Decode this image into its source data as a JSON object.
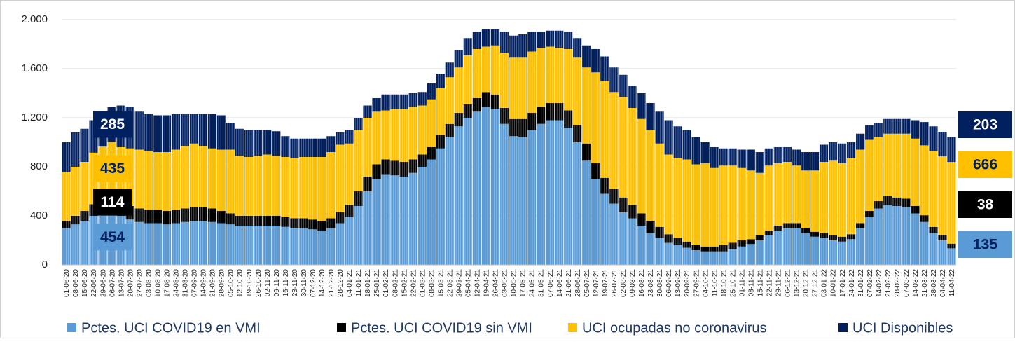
{
  "chart_data": {
    "type": "stacked-bar",
    "ylim": [
      0,
      2000
    ],
    "yticks": [
      0,
      400,
      800,
      {
        "value": 1200,
        "label": "1.200"
      },
      {
        "value": 1600,
        "label": "1.600"
      },
      {
        "value": 2000,
        "label": "2.000"
      }
    ],
    "grid": true,
    "legend": "bottom",
    "categories": [
      "01-06-20",
      "08-06-20",
      "15-06-20",
      "22-06-20",
      "29-06-20",
      "06-07-20",
      "13-07-20",
      "20-07-20",
      "27-07-20",
      "03-08-20",
      "10-08-20",
      "17-08-20",
      "24-08-20",
      "31-08-20",
      "07-09-20",
      "14-09-20",
      "21-09-20",
      "28-09-20",
      "05-10-20",
      "12-10-20",
      "19-10-20",
      "26-10-20",
      "02-11-20",
      "09-11-20",
      "16-11-20",
      "23-11-20",
      "30-11-20",
      "07-12-20",
      "14-12-20",
      "21-12-20",
      "28-12-20",
      "04-01-21",
      "11-01-21",
      "18-01-21",
      "25-01-21",
      "01-02-21",
      "08-02-21",
      "15-02-21",
      "22-02-21",
      "01-03-21",
      "08-03-21",
      "15-03-21",
      "22-03-21",
      "29-03-21",
      "05-04-21",
      "12-04-21",
      "19-04-21",
      "26-04-21",
      "03-05-21",
      "10-05-21",
      "17-05-21",
      "24-05-21",
      "31-05-21",
      "07-06-21",
      "14-06-21",
      "21-06-21",
      "28-06-21",
      "05-07-21",
      "12-07-21",
      "19-07-21",
      "26-07-21",
      "02-08-21",
      "09-08-21",
      "16-08-21",
      "23-08-21",
      "30-08-21",
      "06-09-21",
      "13-09-21",
      "20-09-21",
      "27-09-21",
      "04-10-21",
      "11-10-21",
      "18-10-21",
      "25-10-21",
      "01-11-21",
      "08-11-21",
      "15-11-21",
      "22-11-21",
      "29-11-21",
      "06-12-21",
      "13-12-21",
      "20-12-21",
      "27-12-21",
      "03-01-22",
      "10-01-22",
      "17-01-22",
      "24-01-22",
      "31-01-22",
      "07-02-22",
      "14-02-22",
      "21-02-22",
      "28-02-22",
      "07-03-22",
      "14-03-22",
      "21-03-22",
      "28-03-22",
      "04-04-22",
      "11-04-22"
    ],
    "series": [
      {
        "name": "Pctes. UCI COVID19 en VMI",
        "color": "#5b9bd5",
        "label_text_color": "#002060",
        "values": [
          300,
          330,
          360,
          400,
          430,
          454,
          400,
          370,
          350,
          340,
          340,
          330,
          340,
          350,
          360,
          360,
          350,
          340,
          330,
          320,
          320,
          320,
          320,
          320,
          310,
          300,
          300,
          290,
          280,
          300,
          340,
          390,
          480,
          600,
          700,
          740,
          730,
          720,
          750,
          800,
          860,
          950,
          1040,
          1130,
          1200,
          1250,
          1290,
          1270,
          1150,
          1050,
          1040,
          1100,
          1150,
          1180,
          1180,
          1120,
          1000,
          850,
          700,
          580,
          500,
          430,
          380,
          320,
          260,
          220,
          180,
          160,
          140,
          120,
          110,
          110,
          110,
          130,
          150,
          170,
          200,
          240,
          280,
          300,
          300,
          260,
          230,
          220,
          200,
          190,
          210,
          300,
          390,
          460,
          490,
          480,
          470,
          420,
          350,
          260,
          200,
          135
        ]
      },
      {
        "name": "Pctes. UCI COVID19 sin VMI",
        "color": "#000000",
        "label_text_color": "#ffffff",
        "values": [
          60,
          70,
          80,
          95,
          105,
          114,
          110,
          110,
          110,
          110,
          110,
          110,
          110,
          110,
          110,
          110,
          110,
          100,
          90,
          80,
          80,
          80,
          80,
          80,
          80,
          80,
          80,
          80,
          80,
          80,
          90,
          100,
          120,
          120,
          120,
          120,
          120,
          120,
          110,
          100,
          100,
          110,
          110,
          110,
          110,
          110,
          120,
          120,
          130,
          140,
          150,
          140,
          140,
          140,
          140,
          140,
          140,
          140,
          130,
          130,
          120,
          120,
          110,
          100,
          100,
          90,
          70,
          60,
          50,
          40,
          40,
          40,
          50,
          50,
          50,
          40,
          40,
          40,
          40,
          40,
          40,
          40,
          40,
          40,
          40,
          40,
          40,
          40,
          50,
          60,
          70,
          70,
          70,
          60,
          55,
          50,
          45,
          38
        ]
      },
      {
        "name": "UCI ocupadas no coronavirus",
        "color": "#ffc000",
        "label_text_color": "#002060",
        "values": [
          400,
          400,
          400,
          420,
          430,
          435,
          450,
          470,
          480,
          480,
          470,
          480,
          490,
          510,
          520,
          500,
          490,
          500,
          520,
          490,
          480,
          490,
          500,
          490,
          490,
          490,
          500,
          510,
          520,
          540,
          550,
          500,
          500,
          480,
          430,
          400,
          420,
          430,
          430,
          400,
          390,
          380,
          380,
          370,
          400,
          400,
          370,
          400,
          450,
          500,
          500,
          500,
          480,
          460,
          450,
          500,
          550,
          620,
          740,
          790,
          790,
          820,
          790,
          770,
          740,
          680,
          650,
          650,
          670,
          660,
          680,
          640,
          650,
          630,
          590,
          560,
          510,
          530,
          510,
          500,
          470,
          470,
          500,
          580,
          610,
          600,
          620,
          600,
          580,
          520,
          510,
          520,
          530,
          550,
          570,
          620,
          640,
          666
        ]
      },
      {
        "name": "UCI Disponibles",
        "color": "#002060",
        "label_text_color": "#ffffff",
        "values": [
          240,
          280,
          270,
          265,
          275,
          285,
          340,
          340,
          310,
          300,
          300,
          300,
          290,
          260,
          240,
          260,
          280,
          280,
          220,
          220,
          220,
          210,
          200,
          200,
          170,
          160,
          150,
          150,
          150,
          130,
          100,
          110,
          100,
          100,
          110,
          130,
          120,
          120,
          110,
          110,
          130,
          120,
          120,
          140,
          140,
          140,
          140,
          130,
          170,
          180,
          190,
          160,
          130,
          130,
          140,
          140,
          160,
          180,
          190,
          200,
          200,
          180,
          180,
          210,
          220,
          260,
          280,
          260,
          240,
          220,
          170,
          170,
          140,
          140,
          150,
          170,
          170,
          140,
          130,
          120,
          130,
          150,
          150,
          140,
          150,
          160,
          130,
          130,
          120,
          120,
          120,
          120,
          120,
          150,
          190,
          200,
          200,
          203
        ]
      }
    ]
  }
}
